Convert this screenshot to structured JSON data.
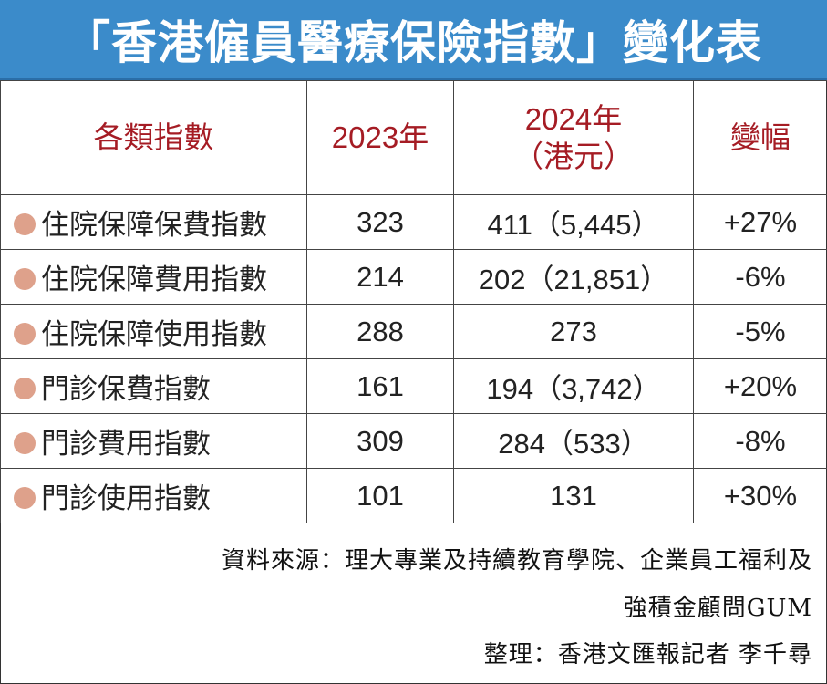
{
  "title": "「香港僱員醫療保險指數」變化表",
  "chart_data": {
    "type": "table",
    "title": "「香港僱員醫療保險指數」變化表",
    "columns": [
      "各類指數",
      "2023年",
      "2024年",
      "（港元）",
      "變幅"
    ],
    "rows": [
      {
        "name": "住院保障保費指數",
        "y2023": "323",
        "y2024": "411（5,445）",
        "change": "+27%"
      },
      {
        "name": "住院保障費用指數",
        "y2023": "214",
        "y2024": "202（21,851）",
        "change": "-6%"
      },
      {
        "name": "住院保障使用指數",
        "y2023": "288",
        "y2024": "273",
        "change": "-5%"
      },
      {
        "name": "門診保費指數",
        "y2023": "161",
        "y2024": "194（3,742）",
        "change": "+20%"
      },
      {
        "name": "門診費用指數",
        "y2023": "309",
        "y2024": "284（533）",
        "change": "-8%"
      },
      {
        "name": "門診使用指數",
        "y2023": "101",
        "y2024": "131",
        "change": "+30%"
      }
    ]
  },
  "footer": {
    "source_line1": "資料來源：理大專業及持續教育學院、企業員工福利及",
    "source_line2": "強積金顧問GUM",
    "credit": "整理：香港文匯報記者 李千尋"
  },
  "colors": {
    "title_bg": "#3b8bca",
    "header_text": "#a51c24",
    "dot": "#dea18b"
  }
}
